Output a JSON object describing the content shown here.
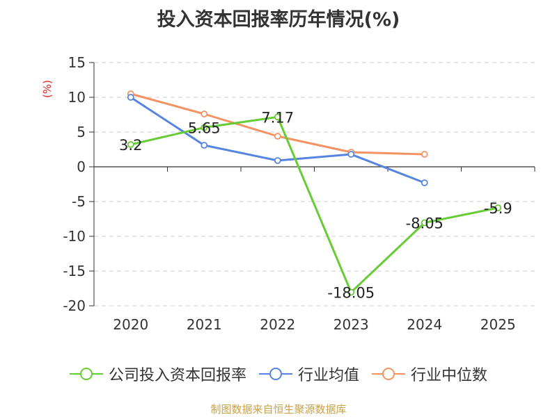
{
  "title": "投入资本回报率历年情况(%)",
  "source": "制图数据来自恒生聚源数据库",
  "chart_data": {
    "type": "line",
    "title": "投入资本回报率历年情况(%)",
    "ylabel": "(%)",
    "xlabel": "",
    "categories": [
      "2020",
      "2021",
      "2022",
      "2023",
      "2024",
      "2025"
    ],
    "y_ticks": [
      15,
      10,
      5,
      0,
      -5,
      -10,
      -15,
      -20
    ],
    "ylim": [
      -20,
      15
    ],
    "grid": true,
    "legend_position": "bottom",
    "series": [
      {
        "name": "公司投入资本回报率",
        "color": "#66cc33",
        "values": [
          3.2,
          5.65,
          7.17,
          -18.05,
          -8.05,
          -5.9
        ],
        "labels": [
          "3.2",
          "5.65",
          "7.17",
          "-18.05",
          "-8.05",
          "-5.9"
        ]
      },
      {
        "name": "行业均值",
        "color": "#5585e0",
        "values": [
          10.0,
          3.1,
          0.9,
          1.8,
          -2.3,
          null
        ]
      },
      {
        "name": "行业中位数",
        "color": "#f59262",
        "values": [
          10.5,
          7.6,
          4.4,
          2.1,
          1.8,
          null
        ]
      }
    ]
  }
}
